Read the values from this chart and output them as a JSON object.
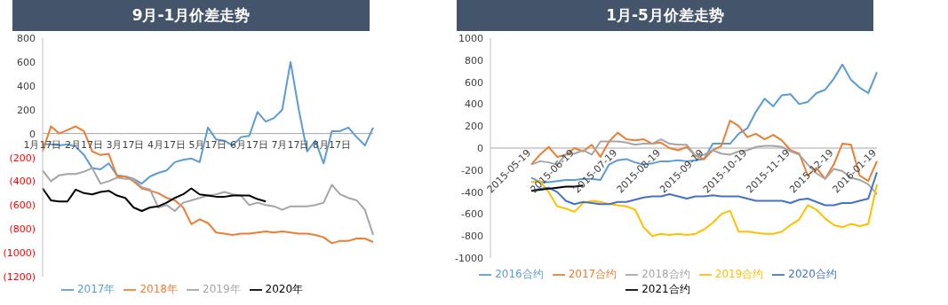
{
  "chart_data": [
    {
      "type": "line",
      "title": "9月-1月价差走势",
      "categories": [
        "1月17日",
        null,
        null,
        null,
        null,
        "2月17日",
        null,
        null,
        null,
        null,
        "3月17日",
        null,
        null,
        null,
        null,
        "4月17日",
        null,
        null,
        null,
        null,
        "5月17日",
        null,
        null,
        null,
        null,
        "6月17日",
        null,
        null,
        null,
        null,
        "7月17日",
        null,
        null,
        null,
        null,
        "8月17日",
        null,
        null,
        null,
        null,
        null
      ],
      "series": [
        {
          "name": "2017年",
          "color": "#5b9bd5",
          "values": [
            -88,
            -90,
            -100,
            -90,
            -110,
            -180,
            -290,
            -300,
            -250,
            -350,
            -360,
            -380,
            -420,
            -360,
            -330,
            -310,
            -240,
            -220,
            -210,
            -240,
            50,
            -50,
            -60,
            -100,
            -30,
            -20,
            180,
            100,
            130,
            200,
            600,
            200,
            -150,
            -60,
            -250,
            20,
            20,
            50,
            -30,
            -100,
            50
          ]
        },
        {
          "name": "2018年",
          "color": "#ed7d31",
          "values": [
            -150,
            60,
            0,
            30,
            60,
            20,
            -150,
            -180,
            -170,
            -360,
            -360,
            -400,
            -460,
            -480,
            -500,
            -540,
            -560,
            -620,
            -760,
            -720,
            -750,
            -830,
            -840,
            -850,
            -840,
            -840,
            -830,
            -820,
            -830,
            -820,
            -830,
            -840,
            -840,
            -850,
            -870,
            -920,
            -900,
            -900,
            -880,
            -880,
            -910
          ]
        },
        {
          "name": "2019年",
          "color": "#a5a5a5",
          "values": [
            -310,
            -400,
            -350,
            -340,
            -340,
            -320,
            -290,
            -420,
            -400,
            -370,
            -380,
            -380,
            -450,
            -470,
            -620,
            -600,
            -650,
            -580,
            -560,
            -540,
            -520,
            -510,
            -490,
            -510,
            -520,
            -600,
            -580,
            -600,
            -610,
            -640,
            -610,
            -610,
            -610,
            -600,
            -580,
            -430,
            -510,
            -540,
            -560,
            -640,
            -850
          ]
        },
        {
          "name": "2020年",
          "color": "#000000",
          "values": [
            -460,
            -560,
            -570,
            -570,
            -470,
            -500,
            -510,
            -490,
            -480,
            -520,
            -540,
            -620,
            -650,
            -620,
            -610,
            -580,
            -540,
            -510,
            -460,
            -510,
            -520,
            -530,
            -530,
            -520,
            -520,
            -520,
            -550,
            -570,
            null,
            null,
            null,
            null,
            null,
            null,
            null,
            null,
            null,
            null,
            null,
            null,
            null
          ]
        }
      ],
      "ylim": [
        -1200,
        800
      ],
      "yticks": [
        {
          "value": -1200,
          "label": "(1200)"
        },
        {
          "value": -1000,
          "label": "(1000)"
        },
        {
          "value": -800,
          "label": "(800)"
        },
        {
          "value": -600,
          "label": "(600)"
        },
        {
          "value": -400,
          "label": "(400)"
        },
        {
          "value": -200,
          "label": "(200)"
        },
        0,
        200,
        400,
        600,
        800
      ],
      "grid": false,
      "legend": "bottom",
      "marker": "none"
    },
    {
      "type": "line",
      "title": "1月-5月价差走势",
      "categories": [
        "2015-05-19",
        null,
        null,
        null,
        null,
        "2015-06-19",
        null,
        null,
        null,
        null,
        "2015-07-19",
        null,
        null,
        null,
        null,
        "2015-08-19",
        null,
        null,
        null,
        null,
        "2015-09-19",
        null,
        null,
        null,
        null,
        "2015-10-19",
        null,
        null,
        null,
        null,
        "2015-11-19",
        null,
        null,
        null,
        null,
        "2015-12-19",
        null,
        null,
        null,
        null,
        "2016-01-19"
      ],
      "series": [
        {
          "name": "2016合约",
          "color": "#5b9bd5",
          "values": [
            -270,
            -310,
            -310,
            -300,
            -290,
            -290,
            -280,
            -280,
            -290,
            -150,
            -110,
            -100,
            -130,
            -150,
            -140,
            -120,
            -120,
            -110,
            -120,
            -110,
            -100,
            40,
            40,
            40,
            130,
            180,
            330,
            450,
            380,
            480,
            490,
            400,
            420,
            500,
            530,
            630,
            760,
            620,
            550,
            500,
            690
          ]
        },
        {
          "name": "2017合约",
          "color": "#ed7d31",
          "values": [
            -150,
            -60,
            10,
            -80,
            -60,
            0,
            -30,
            30,
            -80,
            60,
            140,
            80,
            70,
            80,
            40,
            50,
            0,
            -20,
            10,
            -70,
            -100,
            -20,
            20,
            250,
            200,
            100,
            130,
            80,
            120,
            70,
            -20,
            -50,
            -250,
            -180,
            -280,
            -150,
            40,
            30,
            -250,
            -300,
            -120
          ]
        },
        {
          "name": "2018合约",
          "color": "#a5a5a5",
          "values": [
            -150,
            -120,
            -130,
            -150,
            -60,
            -50,
            -20,
            -60,
            60,
            60,
            60,
            50,
            30,
            40,
            40,
            80,
            40,
            30,
            30,
            -70,
            -60,
            -20,
            -50,
            -60,
            -30,
            -20,
            10,
            20,
            20,
            10,
            -30,
            -60,
            -150,
            -230,
            -280,
            -190,
            -210,
            -270,
            -290,
            -330,
            -420
          ]
        },
        {
          "name": "2019合约",
          "color": "#ffc000",
          "values": [
            -310,
            -300,
            -400,
            -530,
            -550,
            -580,
            -500,
            -480,
            -490,
            -510,
            -520,
            -530,
            -560,
            -720,
            -800,
            -780,
            -790,
            -780,
            -790,
            -780,
            -740,
            -680,
            -600,
            -570,
            -760,
            -760,
            -770,
            -780,
            -780,
            -760,
            -700,
            -650,
            -520,
            -560,
            -640,
            -700,
            -720,
            -690,
            -710,
            -690,
            -330
          ]
        },
        {
          "name": "2020合约",
          "color": "#4472c4",
          "values": [
            -390,
            -370,
            -360,
            -400,
            -480,
            -510,
            -490,
            -500,
            -510,
            -510,
            -490,
            -490,
            -470,
            -450,
            -440,
            -440,
            -420,
            -440,
            -460,
            -440,
            -440,
            -430,
            -440,
            -440,
            -440,
            -460,
            -480,
            -480,
            -480,
            -480,
            -500,
            -470,
            -460,
            -490,
            -520,
            -520,
            -500,
            -500,
            -480,
            -460,
            -220
          ]
        },
        {
          "name": "2021合约",
          "color": "#000000",
          "values": [
            -390,
            -380,
            -370,
            -360,
            -350,
            -350,
            -340,
            null,
            null,
            null,
            null,
            null,
            null,
            null,
            null,
            null,
            null,
            null,
            null,
            null,
            null,
            null,
            null,
            null,
            null,
            null,
            null,
            null,
            null,
            null,
            null,
            null,
            null,
            null,
            null,
            null,
            null,
            null,
            null,
            null,
            null
          ]
        }
      ],
      "ylim": [
        -1000,
        1000
      ],
      "yticks": [
        -1000,
        -800,
        -600,
        -400,
        -200,
        0,
        200,
        400,
        600,
        800,
        1000
      ],
      "grid": false,
      "legend": "bottom",
      "marker": "none"
    }
  ]
}
